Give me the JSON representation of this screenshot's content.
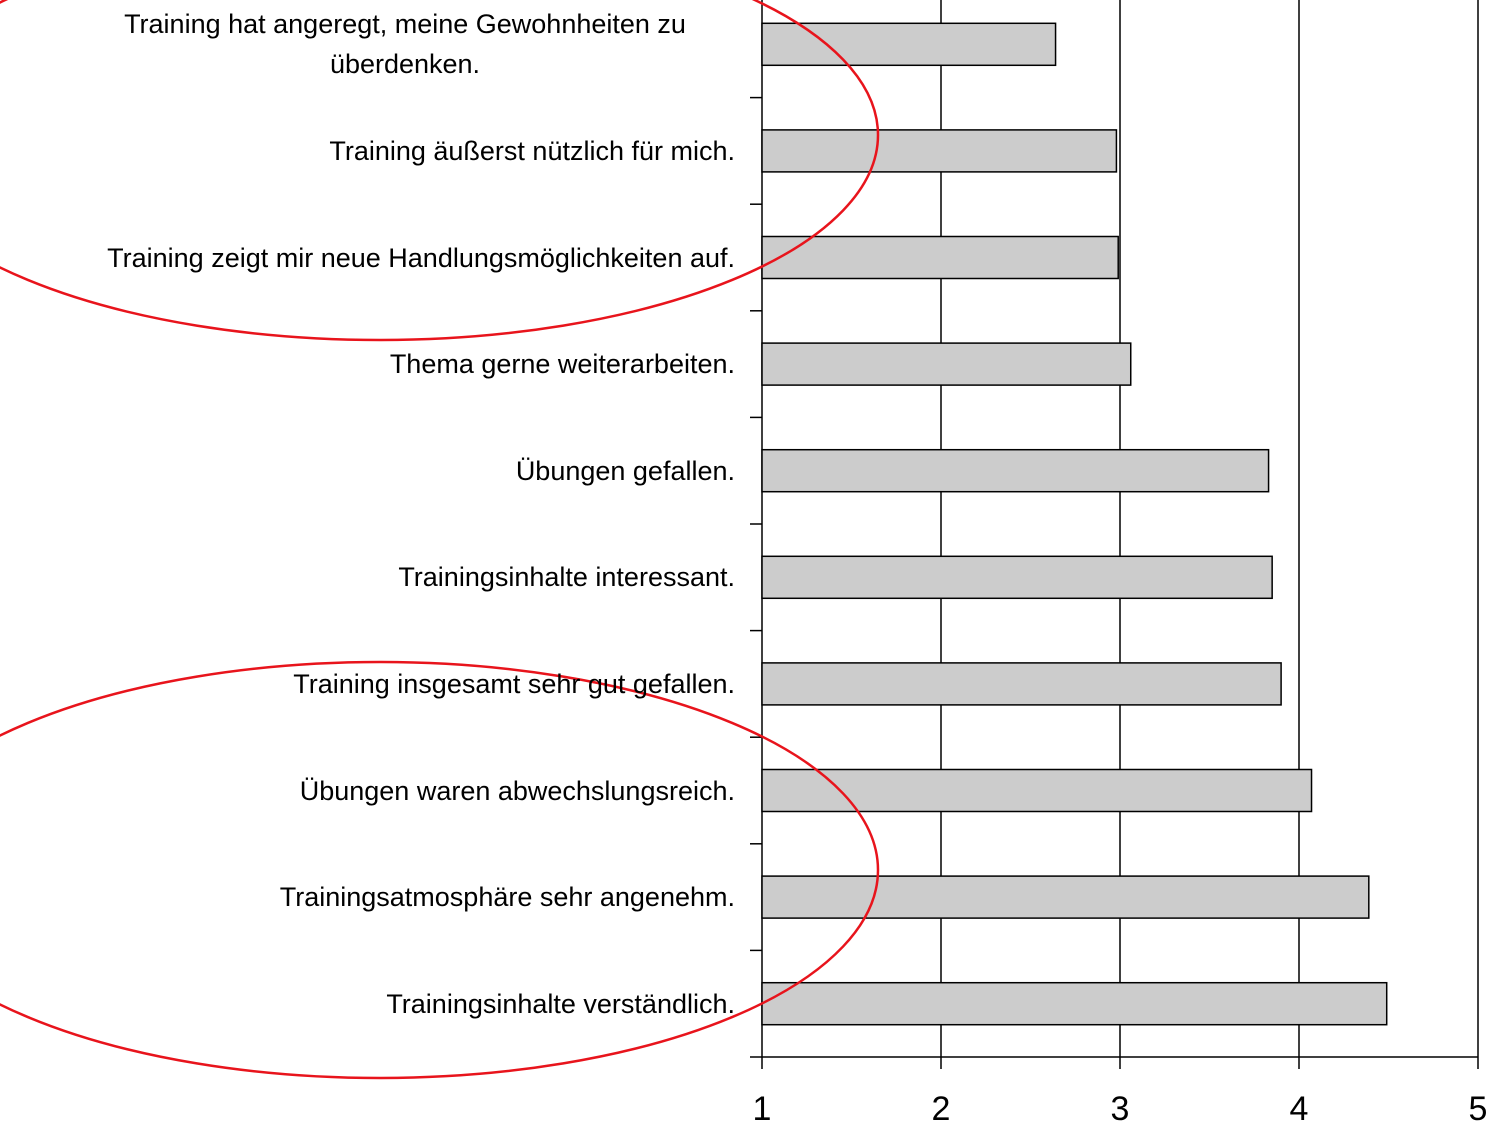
{
  "chart_data": {
    "type": "barh",
    "categories": [
      "Training hat angeregt, meine Gewohnheiten zu überdenken.",
      "Training äußerst nützlich für mich.",
      "Training zeigt mir neue Handlungsmöglichkeiten auf.",
      "Thema gerne weiterarbeiten.",
      "Übungen gefallen.",
      "Trainingsinhalte interessant.",
      "Training insgesamt sehr gut gefallen.",
      "Übungen waren abwechslungsreich.",
      "Trainingsatmosphäre sehr angenehm.",
      "Trainingsinhalte  verständlich."
    ],
    "values": [
      2.64,
      2.98,
      2.99,
      3.06,
      3.83,
      3.85,
      3.9,
      4.07,
      4.39,
      4.49
    ],
    "color": "#cccccc",
    "xlim": [
      1,
      5
    ],
    "xticks": [
      1,
      2,
      3,
      4,
      5
    ],
    "grid": true
  }
}
